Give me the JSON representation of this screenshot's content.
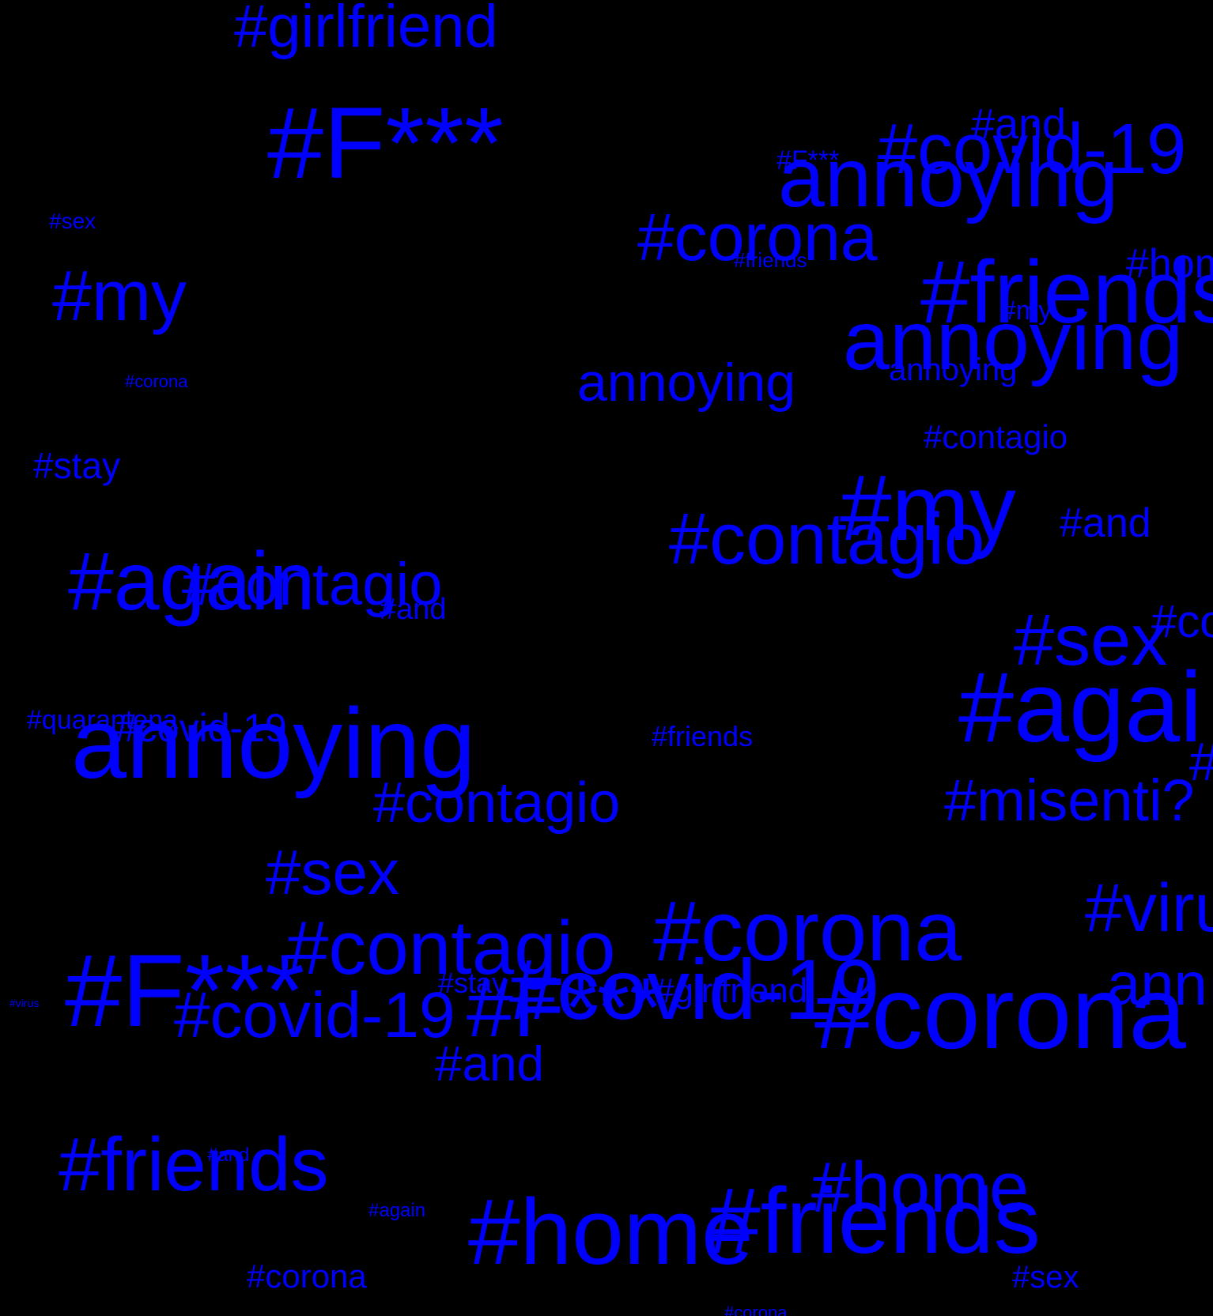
{
  "cloud": {
    "background_color": "#000000",
    "word_color": "#0000ff",
    "words": [
      {
        "text": "#girlfriend"
      },
      {
        "text": "#F***"
      },
      {
        "text": "#and"
      },
      {
        "text": "#covid-19"
      },
      {
        "text": "annoying"
      },
      {
        "text": "#F***"
      },
      {
        "text": "#sex"
      },
      {
        "text": "#corona"
      },
      {
        "text": "#friends"
      },
      {
        "text": "#home"
      },
      {
        "text": "#friends"
      },
      {
        "text": "#my"
      },
      {
        "text": "annoying"
      },
      {
        "text": "#my"
      },
      {
        "text": "annoying"
      },
      {
        "text": "#corona"
      },
      {
        "text": "annoying"
      },
      {
        "text": "#contagio"
      },
      {
        "text": "#stay"
      },
      {
        "text": "#my"
      },
      {
        "text": "#contagio"
      },
      {
        "text": "#and"
      },
      {
        "text": "#again"
      },
      {
        "text": "#contagio"
      },
      {
        "text": "#and"
      },
      {
        "text": "#co"
      },
      {
        "text": "#sex"
      },
      {
        "text": "#agai"
      },
      {
        "text": "#quarantena"
      },
      {
        "text": "#covid-19"
      },
      {
        "text": "annoying"
      },
      {
        "text": "#friends"
      },
      {
        "text": "#"
      },
      {
        "text": "#contagio"
      },
      {
        "text": "#misenti?"
      },
      {
        "text": "#sex"
      },
      {
        "text": "#viru"
      },
      {
        "text": "#contagio"
      },
      {
        "text": "#corona"
      },
      {
        "text": "#F***"
      },
      {
        "text": "#stay"
      },
      {
        "text": "#covid-19"
      },
      {
        "text": "#F***"
      },
      {
        "text": "#covid-19"
      },
      {
        "text": "#girlfriend"
      },
      {
        "text": "#corona"
      },
      {
        "text": "ann"
      },
      {
        "text": "#virus"
      },
      {
        "text": "#and"
      },
      {
        "text": "#friends"
      },
      {
        "text": "#and"
      },
      {
        "text": "#again"
      },
      {
        "text": "#home"
      },
      {
        "text": "#friends"
      },
      {
        "text": "#home"
      },
      {
        "text": "#sex"
      },
      {
        "text": "#corona"
      },
      {
        "text": "#corona"
      }
    ]
  }
}
